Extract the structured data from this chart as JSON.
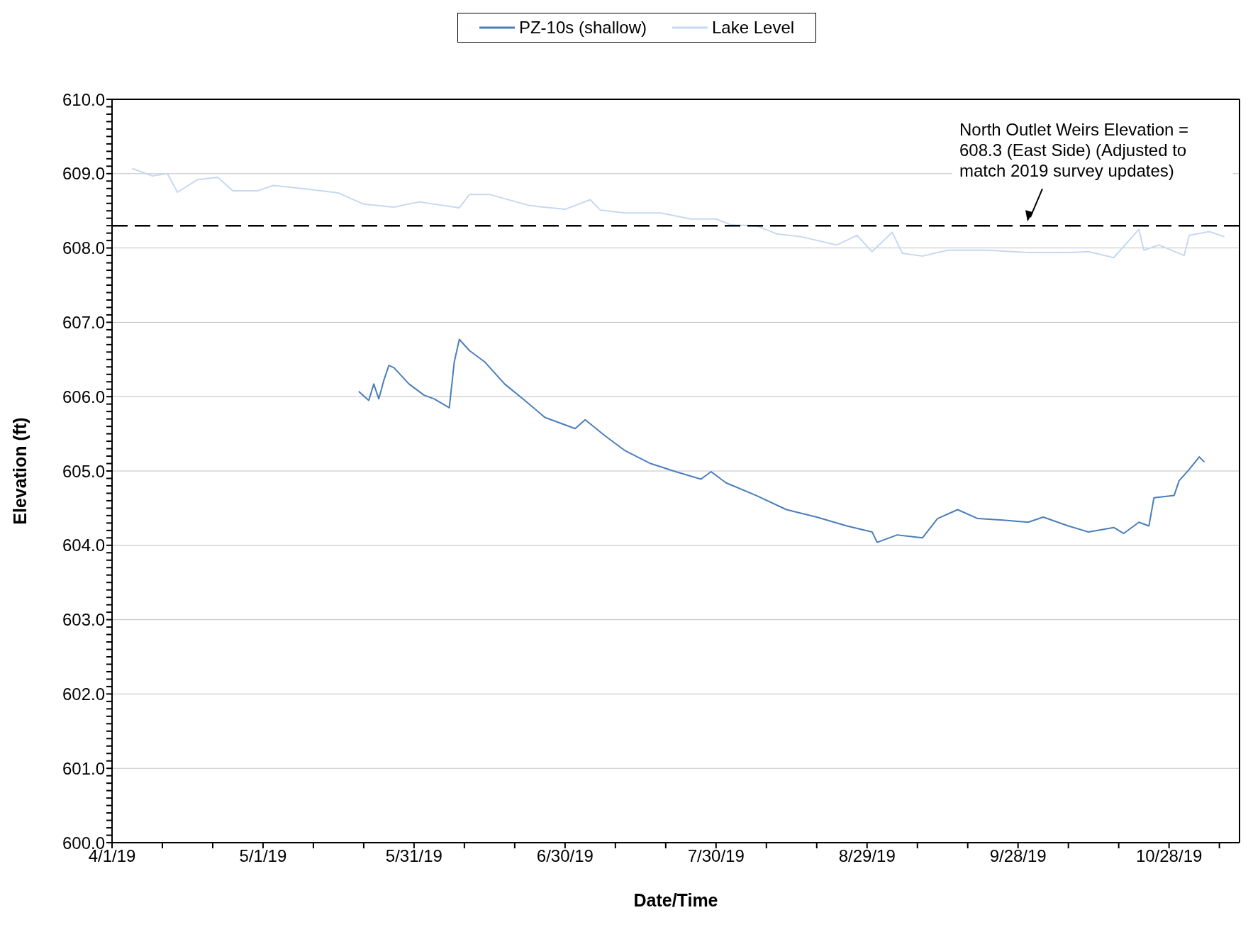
{
  "chart_data": {
    "type": "line",
    "xlabel": "Date/Time",
    "ylabel": "Elevation (ft)",
    "xlim": [
      "2019-04-01",
      "2019-11-11"
    ],
    "xticks": [
      {
        "value": "2019-04-01",
        "label": "4/1/19"
      },
      {
        "value": "2019-04-11",
        "label": null
      },
      {
        "value": "2019-04-21",
        "label": null
      },
      {
        "value": "2019-05-01",
        "label": "5/1/19"
      },
      {
        "value": "2019-05-11",
        "label": null
      },
      {
        "value": "2019-05-21",
        "label": null
      },
      {
        "value": "2019-05-31",
        "label": "5/31/19"
      },
      {
        "value": "2019-06-10",
        "label": null
      },
      {
        "value": "2019-06-20",
        "label": null
      },
      {
        "value": "2019-06-30",
        "label": "6/30/19"
      },
      {
        "value": "2019-07-10",
        "label": null
      },
      {
        "value": "2019-07-20",
        "label": null
      },
      {
        "value": "2019-07-30",
        "label": "7/30/19"
      },
      {
        "value": "2019-08-09",
        "label": null
      },
      {
        "value": "2019-08-19",
        "label": null
      },
      {
        "value": "2019-08-29",
        "label": "8/29/19"
      },
      {
        "value": "2019-09-08",
        "label": null
      },
      {
        "value": "2019-09-18",
        "label": null
      },
      {
        "value": "2019-09-28",
        "label": "9/28/19"
      },
      {
        "value": "2019-10-08",
        "label": null
      },
      {
        "value": "2019-10-18",
        "label": null
      },
      {
        "value": "2019-10-28",
        "label": "10/28/19"
      },
      {
        "value": "2019-11-07",
        "label": null
      }
    ],
    "ylim": [
      600,
      610
    ],
    "yticks": [
      {
        "value": 600,
        "label": "600.0"
      },
      {
        "value": 601,
        "label": "601.0"
      },
      {
        "value": 602,
        "label": "602.0"
      },
      {
        "value": 603,
        "label": "603.0"
      },
      {
        "value": 604,
        "label": "604.0"
      },
      {
        "value": 605,
        "label": "605.0"
      },
      {
        "value": 606,
        "label": "606.0"
      },
      {
        "value": 607,
        "label": "607.0"
      },
      {
        "value": 608,
        "label": "608.0"
      },
      {
        "value": 609,
        "label": "609.0"
      },
      {
        "value": 610,
        "label": "610.0"
      },
      {
        "value": 600.1,
        "label": null
      },
      {
        "value": 600.2,
        "label": null
      },
      {
        "value": 600.3,
        "label": null
      },
      {
        "value": 600.4,
        "label": null
      },
      {
        "value": 600.5,
        "label": null
      },
      {
        "value": 600.6,
        "label": null
      },
      {
        "value": 600.7,
        "label": null
      },
      {
        "value": 600.8,
        "label": null
      },
      {
        "value": 600.9,
        "label": null
      },
      {
        "value": 601.1,
        "label": null
      },
      {
        "value": 601.2,
        "label": null
      },
      {
        "value": 601.3,
        "label": null
      },
      {
        "value": 601.4,
        "label": null
      },
      {
        "value": 601.5,
        "label": null
      },
      {
        "value": 601.6,
        "label": null
      },
      {
        "value": 601.7,
        "label": null
      },
      {
        "value": 601.8,
        "label": null
      },
      {
        "value": 601.9,
        "label": null
      },
      {
        "value": 602.1,
        "label": null
      },
      {
        "value": 602.2,
        "label": null
      },
      {
        "value": 602.3,
        "label": null
      },
      {
        "value": 602.4,
        "label": null
      },
      {
        "value": 602.5,
        "label": null
      },
      {
        "value": 602.6,
        "label": null
      },
      {
        "value": 602.7,
        "label": null
      },
      {
        "value": 602.8,
        "label": null
      },
      {
        "value": 602.9,
        "label": null
      },
      {
        "value": 603.1,
        "label": null
      },
      {
        "value": 603.2,
        "label": null
      },
      {
        "value": 603.3,
        "label": null
      },
      {
        "value": 603.4,
        "label": null
      },
      {
        "value": 603.5,
        "label": null
      },
      {
        "value": 603.6,
        "label": null
      },
      {
        "value": 603.7,
        "label": null
      },
      {
        "value": 603.8,
        "label": null
      },
      {
        "value": 603.9,
        "label": null
      },
      {
        "value": 604.1,
        "label": null
      },
      {
        "value": 604.2,
        "label": null
      },
      {
        "value": 604.3,
        "label": null
      },
      {
        "value": 604.4,
        "label": null
      },
      {
        "value": 604.5,
        "label": null
      },
      {
        "value": 604.6,
        "label": null
      },
      {
        "value": 604.7,
        "label": null
      },
      {
        "value": 604.8,
        "label": null
      },
      {
        "value": 604.9,
        "label": null
      },
      {
        "value": 605.1,
        "label": null
      },
      {
        "value": 605.2,
        "label": null
      },
      {
        "value": 605.3,
        "label": null
      },
      {
        "value": 605.4,
        "label": null
      },
      {
        "value": 605.5,
        "label": null
      },
      {
        "value": 605.6,
        "label": null
      },
      {
        "value": 605.7,
        "label": null
      },
      {
        "value": 605.8,
        "label": null
      },
      {
        "value": 605.9,
        "label": null
      },
      {
        "value": 606.1,
        "label": null
      },
      {
        "value": 606.2,
        "label": null
      },
      {
        "value": 606.3,
        "label": null
      },
      {
        "value": 606.4,
        "label": null
      },
      {
        "value": 606.5,
        "label": null
      },
      {
        "value": 606.6,
        "label": null
      },
      {
        "value": 606.7,
        "label": null
      },
      {
        "value": 606.8,
        "label": null
      },
      {
        "value": 606.9,
        "label": null
      },
      {
        "value": 607.1,
        "label": null
      },
      {
        "value": 607.2,
        "label": null
      },
      {
        "value": 607.3,
        "label": null
      },
      {
        "value": 607.4,
        "label": null
      },
      {
        "value": 607.5,
        "label": null
      },
      {
        "value": 607.6,
        "label": null
      },
      {
        "value": 607.7,
        "label": null
      },
      {
        "value": 607.8,
        "label": null
      },
      {
        "value": 607.9,
        "label": null
      },
      {
        "value": 608.1,
        "label": null
      },
      {
        "value": 608.2,
        "label": null
      },
      {
        "value": 608.3,
        "label": null
      },
      {
        "value": 608.4,
        "label": null
      },
      {
        "value": 608.5,
        "label": null
      },
      {
        "value": 608.6,
        "label": null
      },
      {
        "value": 608.7,
        "label": null
      },
      {
        "value": 608.8,
        "label": null
      },
      {
        "value": 608.9,
        "label": null
      },
      {
        "value": 609.1,
        "label": null
      },
      {
        "value": 609.2,
        "label": null
      },
      {
        "value": 609.3,
        "label": null
      },
      {
        "value": 609.4,
        "label": null
      },
      {
        "value": 609.5,
        "label": null
      },
      {
        "value": 609.6,
        "label": null
      },
      {
        "value": 609.7,
        "label": null
      },
      {
        "value": 609.8,
        "label": null
      },
      {
        "value": 609.9,
        "label": null
      }
    ],
    "grid": "y",
    "legend": "top",
    "marker": "none",
    "line_style": "solid",
    "ref_lines": [
      {
        "axis": "y",
        "value": 608.3,
        "label": "North Outlet Weirs Elevation = 608.3 (East Side) (Adjusted to match 2019 survey updates)",
        "color": "#000000",
        "line_style": "dashed"
      }
    ],
    "series": [
      {
        "name": "PZ-10s (shallow)",
        "color": "#4a7ebb",
        "x": [
          "2019-05-20",
          "2019-05-22",
          "2019-05-23",
          "2019-05-24",
          "2019-05-25",
          "2019-05-26",
          "2019-05-27",
          "2019-05-30",
          "2019-06-02",
          "2019-06-04",
          "2019-06-07",
          "2019-06-08",
          "2019-06-09",
          "2019-06-11",
          "2019-06-14",
          "2019-06-18",
          "2019-06-22",
          "2019-06-26",
          "2019-07-02",
          "2019-07-04",
          "2019-07-08",
          "2019-07-12",
          "2019-07-17",
          "2019-07-22",
          "2019-07-27",
          "2019-07-29",
          "2019-08-01",
          "2019-08-07",
          "2019-08-13",
          "2019-08-19",
          "2019-08-25",
          "2019-08-30",
          "2019-08-31",
          "2019-09-04",
          "2019-09-09",
          "2019-09-12",
          "2019-09-16",
          "2019-09-20",
          "2019-09-25",
          "2019-09-30",
          "2019-10-03",
          "2019-10-08",
          "2019-10-12",
          "2019-10-17",
          "2019-10-19",
          "2019-10-22",
          "2019-10-24",
          "2019-10-25",
          "2019-10-29",
          "2019-10-30",
          "2019-11-01",
          "2019-11-03",
          "2019-11-04"
        ],
        "values": [
          606.07,
          605.95,
          606.17,
          605.97,
          606.22,
          606.42,
          606.39,
          606.17,
          606.02,
          605.97,
          605.85,
          606.47,
          606.77,
          606.62,
          606.47,
          606.17,
          605.95,
          605.72,
          605.57,
          605.69,
          605.47,
          605.27,
          605.1,
          604.99,
          604.89,
          604.99,
          604.84,
          604.67,
          604.48,
          604.38,
          604.26,
          604.18,
          604.04,
          604.14,
          604.1,
          604.36,
          604.48,
          604.36,
          604.34,
          604.31,
          604.38,
          604.26,
          604.18,
          604.24,
          604.16,
          604.31,
          604.26,
          604.64,
          604.67,
          604.87,
          605.02,
          605.19,
          605.12
        ]
      },
      {
        "name": "Lake Level",
        "color": "#c6d9f1",
        "x": [
          "2019-04-05",
          "2019-04-09",
          "2019-04-12",
          "2019-04-14",
          "2019-04-18",
          "2019-04-22",
          "2019-04-25",
          "2019-04-30",
          "2019-05-03",
          "2019-05-10",
          "2019-05-16",
          "2019-05-21",
          "2019-05-27",
          "2019-06-01",
          "2019-06-09",
          "2019-06-11",
          "2019-06-15",
          "2019-06-23",
          "2019-06-30",
          "2019-07-05",
          "2019-07-07",
          "2019-07-12",
          "2019-07-19",
          "2019-07-25",
          "2019-07-30",
          "2019-08-02",
          "2019-08-07",
          "2019-08-11",
          "2019-08-16",
          "2019-08-23",
          "2019-08-27",
          "2019-08-30",
          "2019-09-03",
          "2019-09-05",
          "2019-09-09",
          "2019-09-14",
          "2019-09-22",
          "2019-09-30",
          "2019-10-08",
          "2019-10-12",
          "2019-10-17",
          "2019-10-22",
          "2019-10-23",
          "2019-10-26",
          "2019-10-31",
          "2019-11-01",
          "2019-11-05",
          "2019-11-08"
        ],
        "values": [
          609.07,
          608.97,
          609.0,
          608.75,
          608.92,
          608.95,
          608.77,
          608.77,
          608.84,
          608.79,
          608.74,
          608.59,
          608.55,
          608.62,
          608.54,
          608.72,
          608.72,
          608.57,
          608.52,
          608.65,
          608.51,
          608.47,
          608.47,
          608.39,
          608.39,
          608.31,
          608.3,
          608.19,
          608.15,
          608.04,
          608.17,
          607.95,
          608.21,
          607.93,
          607.89,
          607.97,
          607.97,
          607.94,
          607.94,
          607.95,
          607.87,
          608.25,
          607.97,
          608.04,
          607.9,
          608.17,
          608.22,
          608.15
        ]
      }
    ]
  }
}
